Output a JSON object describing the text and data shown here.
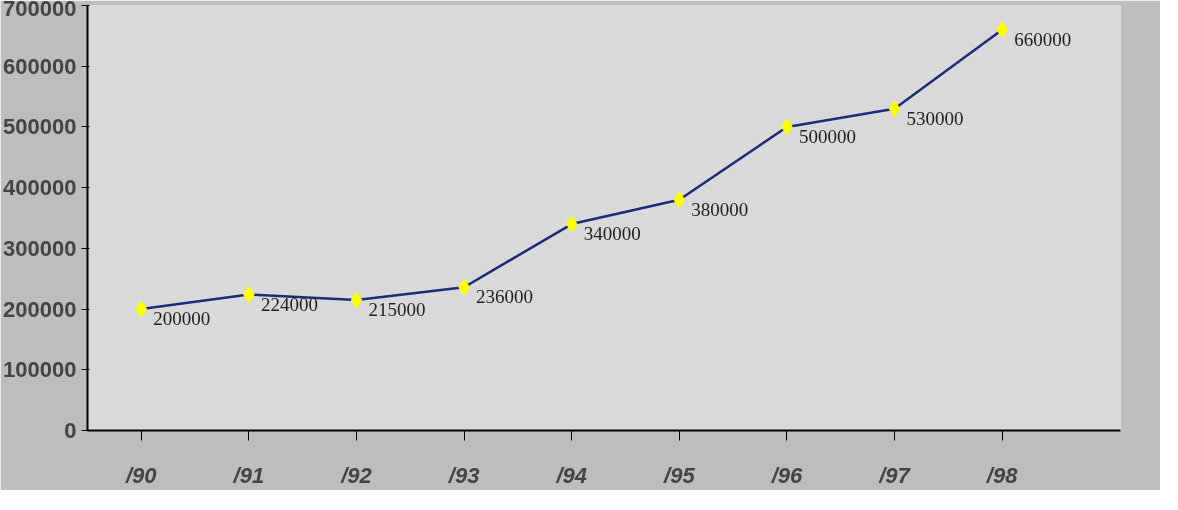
{
  "chart_data": {
    "type": "line",
    "categories": [
      "/90",
      "/91",
      "/92",
      "/93",
      "/94",
      "/95",
      "/96",
      "/97",
      "/98"
    ],
    "series": [
      {
        "color": "#1c2a78",
        "values": [
          200000,
          224000,
          215000,
          236000,
          340000,
          380000,
          500000,
          530000,
          660000
        ]
      }
    ],
    "marker": "diamond",
    "data_labels": true,
    "grid": false,
    "ylim": [
      0,
      700000
    ],
    "yticks": [
      0,
      100000,
      200000,
      300000,
      400000,
      500000,
      600000,
      700000
    ]
  }
}
